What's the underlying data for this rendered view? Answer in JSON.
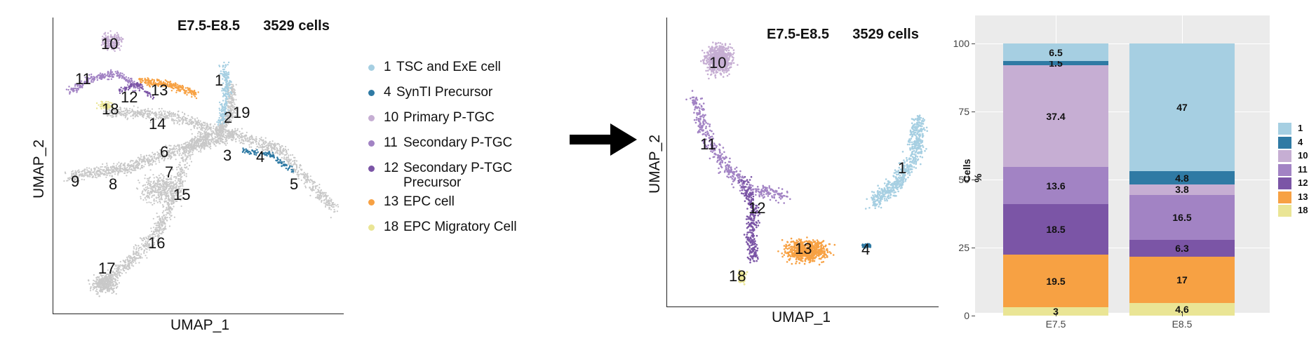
{
  "colors": {
    "c1": "#a6cfe2",
    "c4": "#2f7aa4",
    "c10": "#c6aed3",
    "c11": "#a283c4",
    "c12": "#7b55a6",
    "c13": "#f7a143",
    "c18": "#eae595",
    "other": "#c8c8c8"
  },
  "umap_full": {
    "title": "E7.5-E8.5      3529 cells",
    "xlabel": "UMAP_1",
    "ylabel": "UMAP_2",
    "cluster_labels": [
      "10",
      "11",
      "12",
      "13",
      "1",
      "18",
      "14",
      "19",
      "2",
      "6",
      "3",
      "4",
      "9",
      "8",
      "7",
      "15",
      "5",
      "16",
      "17"
    ]
  },
  "legend": {
    "items": [
      {
        "code": "1",
        "text": "TSC and ExE cell",
        "color": "#a6cfe2"
      },
      {
        "code": "4",
        "text": "SynTI Precursor",
        "color": "#2f7aa4"
      },
      {
        "code": "10",
        "text": "Primary P-TGC",
        "color": "#c6aed3"
      },
      {
        "code": "11",
        "text": "Secondary P-TGC",
        "color": "#a283c4"
      },
      {
        "code": "12",
        "text": "Secondary P-TGC Precursor",
        "color": "#7b55a6"
      },
      {
        "code": "13",
        "text": "EPC cell",
        "color": "#f7a143"
      },
      {
        "code": "18",
        "text": "EPC Migratory Cell",
        "color": "#eae595"
      }
    ]
  },
  "umap_sub": {
    "title": "E7.5-E8.5      3529 cells",
    "xlabel": "UMAP_1",
    "ylabel": "UMAP_2",
    "cluster_labels": [
      "10",
      "11",
      "12",
      "13",
      "1",
      "4",
      "18"
    ]
  },
  "chart_data": [
    {
      "type": "scatter",
      "title": "E7.5-E8.5      3529 cells",
      "xlabel": "UMAP_1",
      "ylabel": "UMAP_2",
      "series": [
        {
          "name": "1 TSC and ExE cell"
        },
        {
          "name": "4 SynTI Precursor"
        },
        {
          "name": "10 Primary P-TGC"
        },
        {
          "name": "11 Secondary P-TGC"
        },
        {
          "name": "12 Secondary P-TGC Precursor"
        },
        {
          "name": "13 EPC cell"
        },
        {
          "name": "18 EPC Migratory Cell"
        }
      ]
    },
    {
      "type": "scatter",
      "title": "E7.5-E8.5      3529 cells",
      "xlabel": "UMAP_1",
      "ylabel": "UMAP_2"
    },
    {
      "type": "bar",
      "stacked": true,
      "categories": [
        "E7.5",
        "E8.5"
      ],
      "ylabel": "Cells %",
      "ylim": [
        0,
        100
      ],
      "yticks": [
        0,
        25,
        50,
        75,
        100
      ],
      "grid": true,
      "legend_position": "right",
      "series": [
        {
          "name": "18",
          "values": [
            3,
            4.6
          ],
          "color": "#eae595"
        },
        {
          "name": "13",
          "values": [
            19.5,
            17
          ],
          "color": "#f7a143"
        },
        {
          "name": "12",
          "values": [
            18.5,
            6.3
          ],
          "color": "#7b55a6"
        },
        {
          "name": "11",
          "values": [
            13.6,
            16.5
          ],
          "color": "#a283c4"
        },
        {
          "name": "10",
          "values": [
            37.4,
            3.8
          ],
          "color": "#c6aed3"
        },
        {
          "name": "4",
          "values": [
            1.5,
            4.8
          ],
          "color": "#2f7aa4"
        },
        {
          "name": "1",
          "values": [
            6.5,
            47
          ],
          "color": "#a6cfe2"
        }
      ],
      "legend_order": [
        "1",
        "4",
        "10",
        "11",
        "12",
        "13",
        "18"
      ]
    }
  ]
}
